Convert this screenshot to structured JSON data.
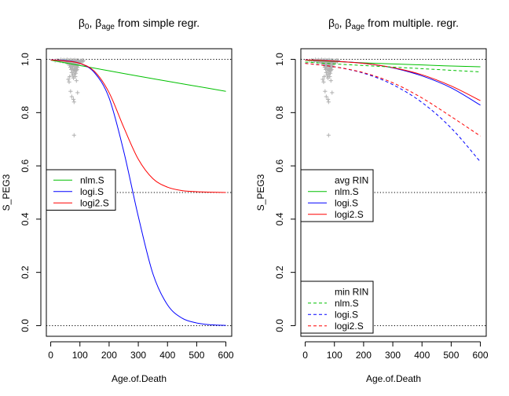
{
  "chart_data": [
    {
      "type": "line",
      "title": "β0, βage from simple regr.",
      "title_parts": {
        "a": "β",
        "a_sub": "0",
        "sep": ", ",
        "b": "β",
        "b_sub": "age",
        "rest": " from simple regr."
      },
      "xlabel": "Age.of.Death",
      "ylabel": "S_PEG3",
      "xlim": [
        -15,
        620
      ],
      "ylim": [
        -0.04,
        1.04
      ],
      "xticks": [
        0,
        100,
        200,
        300,
        400,
        500,
        600
      ],
      "yticks": [
        0.0,
        0.2,
        0.4,
        0.6,
        0.8,
        1.0
      ],
      "hlines": [
        1.0,
        0.5,
        0.0
      ],
      "grid": false,
      "legend_groups": [
        {
          "title": "",
          "entries": [
            {
              "label": "nlm.S",
              "color": "#00c000",
              "dash": "solid"
            },
            {
              "label": "logi.S",
              "color": "#0000ff",
              "dash": "solid"
            },
            {
              "label": "logi2.S",
              "color": "#ff0000",
              "dash": "solid"
            }
          ]
        }
      ],
      "series": [
        {
          "label": "nlm.S",
          "color": "#00c000",
          "dash": "solid",
          "points": [
            [
              0,
              0.997
            ],
            [
              100,
              0.977
            ],
            [
              200,
              0.957
            ],
            [
              300,
              0.937
            ],
            [
              400,
              0.918
            ],
            [
              500,
              0.899
            ],
            [
              600,
              0.88
            ]
          ]
        },
        {
          "label": "logi.S",
          "color": "#0000ff",
          "dash": "solid",
          "points": [
            [
              0,
              0.998
            ],
            [
              50,
              0.995
            ],
            [
              100,
              0.985
            ],
            [
              150,
              0.95
            ],
            [
              200,
              0.855
            ],
            [
              250,
              0.655
            ],
            [
              300,
              0.41
            ],
            [
              350,
              0.195
            ],
            [
              400,
              0.078
            ],
            [
              450,
              0.028
            ],
            [
              500,
              0.01
            ],
            [
              550,
              0.003
            ],
            [
              600,
              0.001
            ]
          ]
        },
        {
          "label": "logi2.S",
          "color": "#ff0000",
          "dash": "solid",
          "points": [
            [
              0,
              0.998
            ],
            [
              50,
              0.994
            ],
            [
              100,
              0.985
            ],
            [
              150,
              0.955
            ],
            [
              200,
              0.875
            ],
            [
              250,
              0.745
            ],
            [
              300,
              0.625
            ],
            [
              350,
              0.552
            ],
            [
              400,
              0.52
            ],
            [
              450,
              0.507
            ],
            [
              500,
              0.503
            ],
            [
              550,
              0.501
            ],
            [
              600,
              0.5
            ]
          ]
        }
      ],
      "scatter_color": "#b0b0b0",
      "scatter": [
        [
          15,
          0.995
        ],
        [
          22,
          0.997
        ],
        [
          28,
          0.996
        ],
        [
          32,
          0.994
        ],
        [
          35,
          0.999
        ],
        [
          40,
          0.996
        ],
        [
          42,
          0.992
        ],
        [
          45,
          0.998
        ],
        [
          48,
          0.995
        ],
        [
          50,
          0.991
        ],
        [
          52,
          0.996
        ],
        [
          55,
          0.988
        ],
        [
          56,
          0.999
        ],
        [
          58,
          0.993
        ],
        [
          60,
          0.984
        ],
        [
          61,
          0.997
        ],
        [
          63,
          0.99
        ],
        [
          64,
          0.978
        ],
        [
          65,
          0.995
        ],
        [
          66,
          0.985
        ],
        [
          67,
          0.97
        ],
        [
          68,
          0.998
        ],
        [
          69,
          0.988
        ],
        [
          70,
          0.962
        ],
        [
          70,
          0.992
        ],
        [
          71,
          0.975
        ],
        [
          72,
          0.95
        ],
        [
          72,
          0.996
        ],
        [
          73,
          0.982
        ],
        [
          74,
          0.965
        ],
        [
          74,
          0.993
        ],
        [
          75,
          0.94
        ],
        [
          75,
          0.985
        ],
        [
          76,
          0.972
        ],
        [
          77,
          0.955
        ],
        [
          77,
          0.997
        ],
        [
          78,
          0.988
        ],
        [
          78,
          0.93
        ],
        [
          79,
          0.978
        ],
        [
          80,
          0.962
        ],
        [
          80,
          0.994
        ],
        [
          81,
          0.945
        ],
        [
          81,
          0.984
        ],
        [
          82,
          0.972
        ],
        [
          82,
          0.998
        ],
        [
          83,
          0.958
        ],
        [
          83,
          0.99
        ],
        [
          84,
          0.935
        ],
        [
          84,
          0.978
        ],
        [
          85,
          0.995
        ],
        [
          85,
          0.965
        ],
        [
          86,
          0.948
        ],
        [
          86,
          0.986
        ],
        [
          87,
          0.972
        ],
        [
          88,
          0.958
        ],
        [
          88,
          0.993
        ],
        [
          89,
          0.98
        ],
        [
          90,
          0.962
        ],
        [
          90,
          0.997
        ],
        [
          91,
          0.985
        ],
        [
          92,
          0.97
        ],
        [
          93,
          0.99
        ],
        [
          94,
          0.978
        ],
        [
          95,
          0.996
        ],
        [
          96,
          0.984
        ],
        [
          98,
          0.992
        ],
        [
          100,
          0.988
        ],
        [
          102,
          0.995
        ],
        [
          105,
          0.99
        ],
        [
          108,
          0.997
        ],
        [
          110,
          0.992
        ],
        [
          112,
          0.996
        ],
        [
          68,
          0.88
        ],
        [
          72,
          0.86
        ],
        [
          78,
          0.85
        ],
        [
          80,
          0.84
        ],
        [
          92,
          0.875
        ],
        [
          80,
          0.715
        ],
        [
          60,
          0.925
        ],
        [
          63,
          0.915
        ],
        [
          65,
          0.935
        ],
        [
          88,
          0.92
        ]
      ]
    },
    {
      "type": "line",
      "title": "β0, βage from multiple. regr.",
      "title_parts": {
        "a": "β",
        "a_sub": "0",
        "sep": ", ",
        "b": "β",
        "b_sub": "age",
        "rest": " from multiple. regr."
      },
      "xlabel": "Age.of.Death",
      "ylabel": "S_PEG3",
      "xlim": [
        -15,
        620
      ],
      "ylim": [
        -0.04,
        1.04
      ],
      "xticks": [
        0,
        100,
        200,
        300,
        400,
        500,
        600
      ],
      "yticks": [
        0.0,
        0.2,
        0.4,
        0.6,
        0.8,
        1.0
      ],
      "hlines": [
        1.0,
        0.5,
        0.0
      ],
      "grid": false,
      "legend_groups": [
        {
          "title": "avg RIN",
          "entries": [
            {
              "label": "nlm.S",
              "color": "#00c000",
              "dash": "solid"
            },
            {
              "label": "logi.S",
              "color": "#0000ff",
              "dash": "solid"
            },
            {
              "label": "logi2.S",
              "color": "#ff0000",
              "dash": "solid"
            }
          ]
        },
        {
          "title": "min RIN",
          "entries": [
            {
              "label": "nlm.S",
              "color": "#00c000",
              "dash": "dashed"
            },
            {
              "label": "logi.S",
              "color": "#0000ff",
              "dash": "dashed"
            },
            {
              "label": "logi2.S",
              "color": "#ff0000",
              "dash": "dashed"
            }
          ]
        }
      ],
      "series": [
        {
          "label": "nlm.S (avg RIN)",
          "color": "#00c000",
          "dash": "solid",
          "points": [
            [
              0,
              0.997
            ],
            [
              100,
              0.992
            ],
            [
              200,
              0.987
            ],
            [
              300,
              0.983
            ],
            [
              400,
              0.979
            ],
            [
              500,
              0.975
            ],
            [
              600,
              0.972
            ]
          ]
        },
        {
          "label": "logi.S (avg RIN)",
          "color": "#0000ff",
          "dash": "solid",
          "points": [
            [
              0,
              0.998
            ],
            [
              100,
              0.993
            ],
            [
              200,
              0.985
            ],
            [
              300,
              0.968
            ],
            [
              400,
              0.938
            ],
            [
              500,
              0.893
            ],
            [
              600,
              0.828
            ]
          ]
        },
        {
          "label": "logi2.S (avg RIN)",
          "color": "#ff0000",
          "dash": "solid",
          "points": [
            [
              0,
              0.998
            ],
            [
              100,
              0.993
            ],
            [
              200,
              0.985
            ],
            [
              300,
              0.969
            ],
            [
              400,
              0.942
            ],
            [
              500,
              0.9
            ],
            [
              600,
              0.845
            ]
          ]
        },
        {
          "label": "nlm.S (min RIN)",
          "color": "#00c000",
          "dash": "dashed",
          "points": [
            [
              0,
              0.99
            ],
            [
              100,
              0.983
            ],
            [
              200,
              0.977
            ],
            [
              300,
              0.971
            ],
            [
              400,
              0.965
            ],
            [
              500,
              0.959
            ],
            [
              600,
              0.953
            ]
          ]
        },
        {
          "label": "logi.S (min RIN)",
          "color": "#0000ff",
          "dash": "dashed",
          "points": [
            [
              0,
              0.985
            ],
            [
              100,
              0.972
            ],
            [
              200,
              0.948
            ],
            [
              300,
              0.905
            ],
            [
              400,
              0.838
            ],
            [
              500,
              0.742
            ],
            [
              600,
              0.615
            ]
          ]
        },
        {
          "label": "logi2.S (min RIN)",
          "color": "#ff0000",
          "dash": "dashed",
          "points": [
            [
              0,
              0.985
            ],
            [
              100,
              0.972
            ],
            [
              200,
              0.95
            ],
            [
              300,
              0.912
            ],
            [
              400,
              0.855
            ],
            [
              500,
              0.785
            ],
            [
              600,
              0.712
            ]
          ]
        }
      ],
      "scatter_color": "#b0b0b0",
      "scatter": [
        [
          15,
          0.995
        ],
        [
          22,
          0.997
        ],
        [
          28,
          0.996
        ],
        [
          32,
          0.994
        ],
        [
          35,
          0.999
        ],
        [
          40,
          0.996
        ],
        [
          42,
          0.992
        ],
        [
          45,
          0.998
        ],
        [
          48,
          0.995
        ],
        [
          50,
          0.991
        ],
        [
          52,
          0.996
        ],
        [
          55,
          0.988
        ],
        [
          56,
          0.999
        ],
        [
          58,
          0.993
        ],
        [
          60,
          0.984
        ],
        [
          61,
          0.997
        ],
        [
          63,
          0.99
        ],
        [
          64,
          0.978
        ],
        [
          65,
          0.995
        ],
        [
          66,
          0.985
        ],
        [
          67,
          0.97
        ],
        [
          68,
          0.998
        ],
        [
          69,
          0.988
        ],
        [
          70,
          0.962
        ],
        [
          70,
          0.992
        ],
        [
          71,
          0.975
        ],
        [
          72,
          0.95
        ],
        [
          72,
          0.996
        ],
        [
          73,
          0.982
        ],
        [
          74,
          0.965
        ],
        [
          74,
          0.993
        ],
        [
          75,
          0.94
        ],
        [
          75,
          0.985
        ],
        [
          76,
          0.972
        ],
        [
          77,
          0.955
        ],
        [
          77,
          0.997
        ],
        [
          78,
          0.988
        ],
        [
          78,
          0.93
        ],
        [
          79,
          0.978
        ],
        [
          80,
          0.962
        ],
        [
          80,
          0.994
        ],
        [
          81,
          0.945
        ],
        [
          81,
          0.984
        ],
        [
          82,
          0.972
        ],
        [
          82,
          0.998
        ],
        [
          83,
          0.958
        ],
        [
          83,
          0.99
        ],
        [
          84,
          0.935
        ],
        [
          84,
          0.978
        ],
        [
          85,
          0.995
        ],
        [
          85,
          0.965
        ],
        [
          86,
          0.948
        ],
        [
          86,
          0.986
        ],
        [
          87,
          0.972
        ],
        [
          88,
          0.958
        ],
        [
          88,
          0.993
        ],
        [
          89,
          0.98
        ],
        [
          90,
          0.962
        ],
        [
          90,
          0.997
        ],
        [
          91,
          0.985
        ],
        [
          92,
          0.97
        ],
        [
          93,
          0.99
        ],
        [
          94,
          0.978
        ],
        [
          95,
          0.996
        ],
        [
          96,
          0.984
        ],
        [
          98,
          0.992
        ],
        [
          100,
          0.988
        ],
        [
          102,
          0.995
        ],
        [
          105,
          0.99
        ],
        [
          108,
          0.997
        ],
        [
          110,
          0.992
        ],
        [
          112,
          0.996
        ],
        [
          68,
          0.88
        ],
        [
          72,
          0.86
        ],
        [
          78,
          0.85
        ],
        [
          80,
          0.84
        ],
        [
          92,
          0.875
        ],
        [
          80,
          0.715
        ],
        [
          60,
          0.925
        ],
        [
          63,
          0.915
        ],
        [
          65,
          0.935
        ],
        [
          88,
          0.92
        ]
      ]
    }
  ]
}
